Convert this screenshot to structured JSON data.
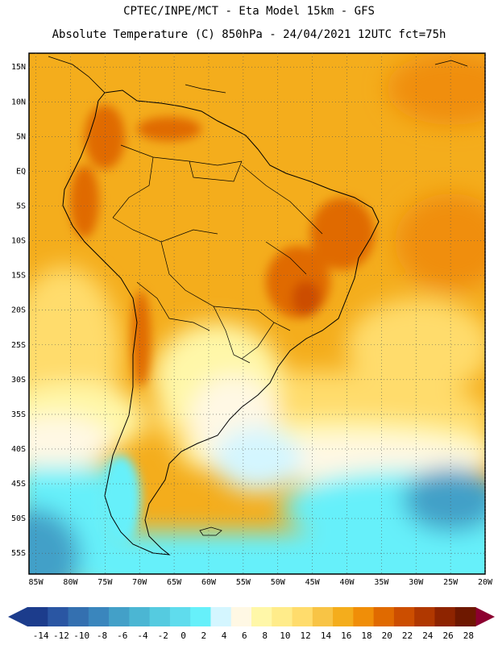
{
  "header": {
    "line1": "CPTEC/INPE/MCT  -   Eta Model 15km  -  GFS",
    "line2": "Absolute Temperature (C) 850hPa - 24/04/2021 12UTC fct=75h"
  },
  "axes": {
    "lat_labels": [
      "15N",
      "10N",
      "5N",
      "EQ",
      "5S",
      "10S",
      "15S",
      "20S",
      "25S",
      "30S",
      "35S",
      "40S",
      "45S",
      "50S",
      "55S"
    ],
    "lon_labels": [
      "85W",
      "80W",
      "75W",
      "70W",
      "65W",
      "60W",
      "55W",
      "50W",
      "45W",
      "40W",
      "35W",
      "30W",
      "25W",
      "20W"
    ]
  },
  "colorbar": {
    "labels": [
      "-14",
      "-12",
      "-10",
      "-8",
      "-6",
      "-4",
      "-2",
      "0",
      "2",
      "4",
      "6",
      "8",
      "10",
      "12",
      "14",
      "16",
      "18",
      "20",
      "22",
      "24",
      "26",
      "28"
    ],
    "colors": [
      "#1c3c8c",
      "#2a56a3",
      "#3470b0",
      "#3a86bd",
      "#43a0c8",
      "#4bb6d3",
      "#55cbe0",
      "#5fdced",
      "#66f0fa",
      "#d4f6ff",
      "#fff8e4",
      "#fff7a8",
      "#ffec8a",
      "#ffdc6c",
      "#f8c445",
      "#f4ad1c",
      "#f08e08",
      "#e06a00",
      "#cc4e00",
      "#b03800",
      "#8e2400",
      "#6e1800"
    ]
  },
  "map_colors": {
    "ocean_warm": "#f4ad1c",
    "ocean_hot": "#f08e08",
    "hot_core": "#e06a00",
    "very_hot": "#cc4e00",
    "mild": "#ffdc6c",
    "cool": "#fff7a8",
    "cream": "#fff8e4",
    "pale_cyan": "#d4f6ff",
    "cyan": "#66f0fa",
    "cold": "#43a0c8",
    "colder": "#2a56a3"
  }
}
